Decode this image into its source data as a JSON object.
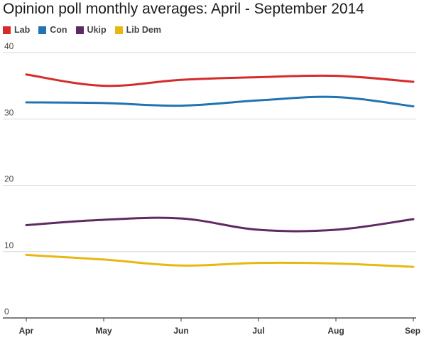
{
  "chart_data": {
    "type": "line",
    "title": "Opinion poll monthly averages: April - September 2014",
    "categories": [
      "Apr",
      "May",
      "Jun",
      "Jul",
      "Aug",
      "Sep"
    ],
    "series": [
      {
        "name": "Lab",
        "color": "#d52b2b",
        "values": [
          36.7,
          35.0,
          35.9,
          36.3,
          36.5,
          35.6
        ]
      },
      {
        "name": "Con",
        "color": "#2074b4",
        "values": [
          32.5,
          32.4,
          32.0,
          32.8,
          33.3,
          31.9
        ]
      },
      {
        "name": "Ukip",
        "color": "#5f2a62",
        "values": [
          14.0,
          14.8,
          15.0,
          13.3,
          13.3,
          14.9
        ]
      },
      {
        "name": "Lib Dem",
        "color": "#e8b812",
        "values": [
          9.5,
          8.8,
          7.9,
          8.3,
          8.2,
          7.7
        ]
      }
    ],
    "ylim": [
      0,
      40
    ],
    "yticks": [
      0,
      10,
      20,
      30,
      40
    ],
    "xlabel": "",
    "ylabel": "",
    "grid": true,
    "legend": "top-left"
  }
}
